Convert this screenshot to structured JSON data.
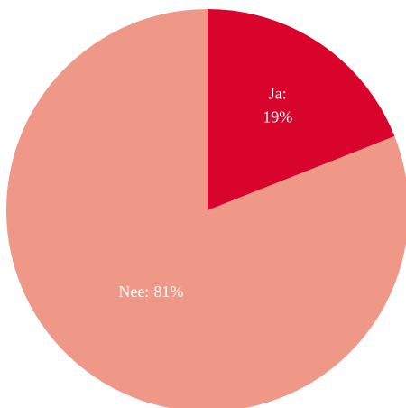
{
  "chart_data": {
    "type": "pie",
    "categories": [
      "Ja:",
      "Nee:"
    ],
    "values": [
      19,
      81
    ],
    "value_labels": [
      "19%",
      "81%"
    ],
    "colors": [
      "#d9042b",
      "#ef9888"
    ]
  }
}
